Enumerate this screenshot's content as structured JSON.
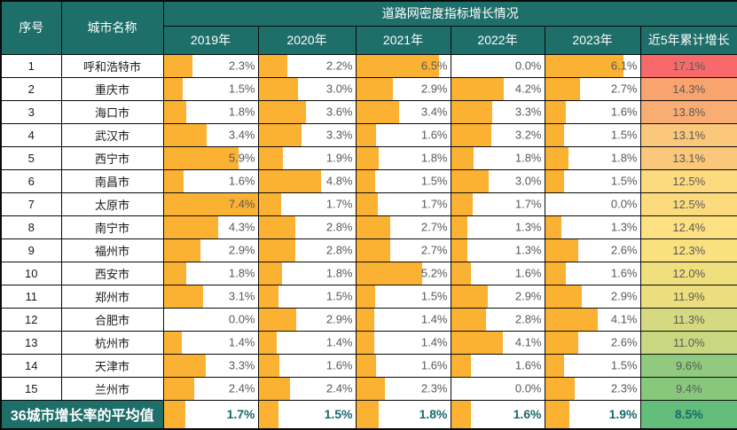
{
  "chart_data": {
    "type": "table",
    "title": "道路网密度指标增长情况",
    "col_no": "序号",
    "col_city": "城市名称",
    "years": [
      "2019年",
      "2020年",
      "2021年",
      "2022年",
      "2023年"
    ],
    "col_cumulative": "近5年累计增长",
    "bar_max": 7.4,
    "colors": {
      "header_bg": "#1E6F6A",
      "bar_fill": "#FBB132",
      "value_text": "#595959",
      "summary_value_text": "#17696B",
      "scale_max_red": "#F8696B",
      "scale_mid_yellow": "#FFEB84",
      "scale_min_green": "#63BE7B"
    },
    "rows": [
      {
        "no": 1,
        "city": "呼和浩特市",
        "values": [
          2.3,
          2.2,
          6.5,
          0.0,
          6.1
        ],
        "cumulative": 17.1,
        "color": "#F8696B"
      },
      {
        "no": 2,
        "city": "重庆市",
        "values": [
          1.5,
          3.0,
          2.9,
          4.2,
          2.7
        ],
        "cumulative": 14.3,
        "color": "#F9A46E"
      },
      {
        "no": 3,
        "city": "海口市",
        "values": [
          1.8,
          3.6,
          3.4,
          3.3,
          1.6
        ],
        "cumulative": 13.8,
        "color": "#FAAD73"
      },
      {
        "no": 4,
        "city": "武汉市",
        "values": [
          3.4,
          3.3,
          1.6,
          3.2,
          1.5
        ],
        "cumulative": 13.1,
        "color": "#FBC77A"
      },
      {
        "no": 5,
        "city": "西宁市",
        "values": [
          5.9,
          1.9,
          1.8,
          1.8,
          1.8
        ],
        "cumulative": 13.1,
        "color": "#FBC77A"
      },
      {
        "no": 6,
        "city": "南昌市",
        "values": [
          1.6,
          4.8,
          1.5,
          3.0,
          1.5
        ],
        "cumulative": 12.5,
        "color": "#FCDB7F"
      },
      {
        "no": 7,
        "city": "太原市",
        "values": [
          7.4,
          1.7,
          1.7,
          1.7,
          0.0
        ],
        "cumulative": 12.5,
        "color": "#FCDB7F"
      },
      {
        "no": 8,
        "city": "南宁市",
        "values": [
          4.3,
          2.8,
          2.7,
          1.3,
          1.3
        ],
        "cumulative": 12.4,
        "color": "#FDE081"
      },
      {
        "no": 9,
        "city": "福州市",
        "values": [
          2.9,
          2.8,
          2.7,
          1.3,
          2.6
        ],
        "cumulative": 12.3,
        "color": "#F9E17F"
      },
      {
        "no": 10,
        "city": "西安市",
        "values": [
          1.8,
          1.8,
          5.2,
          1.6,
          1.6
        ],
        "cumulative": 12.0,
        "color": "#F0DF7D"
      },
      {
        "no": 11,
        "city": "郑州市",
        "values": [
          3.1,
          1.5,
          1.5,
          2.9,
          2.9
        ],
        "cumulative": 11.9,
        "color": "#EDDE7D"
      },
      {
        "no": 12,
        "city": "合肥市",
        "values": [
          0.0,
          2.9,
          1.4,
          2.8,
          4.1
        ],
        "cumulative": 11.3,
        "color": "#D5DA80"
      },
      {
        "no": 13,
        "city": "杭州市",
        "values": [
          1.4,
          1.4,
          1.4,
          4.1,
          2.6
        ],
        "cumulative": 11.0,
        "color": "#C9D880"
      },
      {
        "no": 14,
        "city": "天津市",
        "values": [
          3.3,
          1.6,
          1.6,
          1.6,
          1.5
        ],
        "cumulative": 9.6,
        "color": "#8FCA7E"
      },
      {
        "no": 15,
        "city": "兰州市",
        "values": [
          2.4,
          2.4,
          2.3,
          0.0,
          2.3
        ],
        "cumulative": 9.4,
        "color": "#88C87D"
      }
    ],
    "summary": {
      "label": "36城市增长率的平均值",
      "values": [
        1.7,
        1.5,
        1.8,
        1.6,
        1.9
      ],
      "cumulative": 8.5,
      "color": "#63BE7B"
    }
  }
}
